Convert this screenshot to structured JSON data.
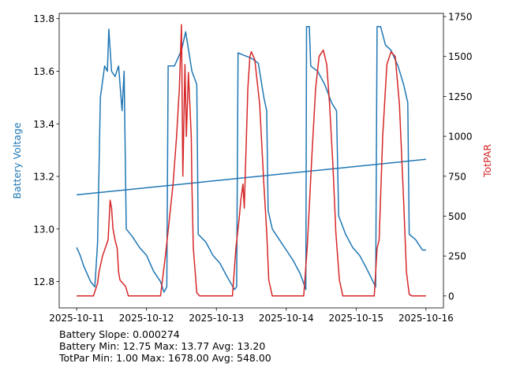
{
  "chart_data": {
    "type": "line",
    "left_axis": {
      "label": "Battery Voltage",
      "color": "#1f77b4",
      "ylim": [
        12.7,
        13.82
      ],
      "ticks": [
        12.8,
        13.0,
        13.2,
        13.4,
        13.6,
        13.8
      ],
      "tick_labels": [
        "12.8",
        "13.0",
        "13.2",
        "13.4",
        "13.6",
        "13.8"
      ]
    },
    "right_axis": {
      "label": "TotPAR",
      "color": "#d62728",
      "ylim": [
        -75,
        1770
      ],
      "ticks": [
        0,
        250,
        500,
        750,
        1000,
        1250,
        1500,
        1750
      ],
      "tick_labels": [
        "0",
        "250",
        "500",
        "750",
        "1000",
        "1250",
        "1500",
        "1750"
      ]
    },
    "x_axis": {
      "unit": "days since 2025-10-11",
      "xlim": [
        -0.25,
        5.25
      ],
      "ticks": [
        0,
        1,
        2,
        3,
        4,
        5
      ],
      "tick_labels": [
        "2025-10-11",
        "2025-10-12",
        "2025-10-13",
        "2025-10-14",
        "2025-10-15",
        "2025-10-16"
      ]
    },
    "series": [
      {
        "name": "Battery Voltage",
        "axis": "left",
        "color": "#1f77b4",
        "points": [
          [
            0,
            12.93
          ],
          [
            0.05,
            12.9
          ],
          [
            0.1,
            12.86
          ],
          [
            0.15,
            12.83
          ],
          [
            0.2,
            12.8
          ],
          [
            0.26,
            12.78
          ],
          [
            0.3,
            12.95
          ],
          [
            0.34,
            13.5
          ],
          [
            0.4,
            13.62
          ],
          [
            0.44,
            13.6
          ],
          [
            0.46,
            13.76
          ],
          [
            0.5,
            13.6
          ],
          [
            0.55,
            13.58
          ],
          [
            0.6,
            13.62
          ],
          [
            0.65,
            13.45
          ],
          [
            0.68,
            13.6
          ],
          [
            0.71,
            13.0
          ],
          [
            0.8,
            12.97
          ],
          [
            0.9,
            12.93
          ],
          [
            1.0,
            12.9
          ],
          [
            1.1,
            12.84
          ],
          [
            1.2,
            12.8
          ],
          [
            1.25,
            12.76
          ],
          [
            1.29,
            12.78
          ],
          [
            1.31,
            13.62
          ],
          [
            1.4,
            13.62
          ],
          [
            1.5,
            13.68
          ],
          [
            1.56,
            13.75
          ],
          [
            1.65,
            13.6
          ],
          [
            1.72,
            13.55
          ],
          [
            1.74,
            12.98
          ],
          [
            1.85,
            12.95
          ],
          [
            1.95,
            12.9
          ],
          [
            2.05,
            12.87
          ],
          [
            2.15,
            12.82
          ],
          [
            2.26,
            12.77
          ],
          [
            2.29,
            12.78
          ],
          [
            2.31,
            13.67
          ],
          [
            2.4,
            13.66
          ],
          [
            2.5,
            13.65
          ],
          [
            2.6,
            13.63
          ],
          [
            2.68,
            13.5
          ],
          [
            2.72,
            13.45
          ],
          [
            2.74,
            13.07
          ],
          [
            2.8,
            13.0
          ],
          [
            2.9,
            12.96
          ],
          [
            3.0,
            12.92
          ],
          [
            3.1,
            12.88
          ],
          [
            3.2,
            12.83
          ],
          [
            3.28,
            12.77
          ],
          [
            3.29,
            13.77
          ],
          [
            3.33,
            13.77
          ],
          [
            3.35,
            13.62
          ],
          [
            3.45,
            13.6
          ],
          [
            3.55,
            13.55
          ],
          [
            3.65,
            13.48
          ],
          [
            3.72,
            13.45
          ],
          [
            3.75,
            13.05
          ],
          [
            3.85,
            12.98
          ],
          [
            3.95,
            12.93
          ],
          [
            4.05,
            12.9
          ],
          [
            4.15,
            12.85
          ],
          [
            4.28,
            12.78
          ],
          [
            4.3,
            13.77
          ],
          [
            4.35,
            13.77
          ],
          [
            4.42,
            13.7
          ],
          [
            4.5,
            13.68
          ],
          [
            4.6,
            13.62
          ],
          [
            4.68,
            13.55
          ],
          [
            4.74,
            13.48
          ],
          [
            4.76,
            12.98
          ],
          [
            4.85,
            12.96
          ],
          [
            4.95,
            12.92
          ],
          [
            5.0,
            12.92
          ]
        ]
      },
      {
        "name": "Battery Trend",
        "axis": "left",
        "color": "#1f77b4",
        "points": [
          [
            0,
            13.13
          ],
          [
            5,
            13.265
          ]
        ]
      },
      {
        "name": "TotPAR",
        "axis": "right",
        "color": "#d62728",
        "points": [
          [
            0,
            0
          ],
          [
            0.24,
            0
          ],
          [
            0.3,
            80
          ],
          [
            0.32,
            150
          ],
          [
            0.37,
            250
          ],
          [
            0.41,
            300
          ],
          [
            0.45,
            350
          ],
          [
            0.48,
            600
          ],
          [
            0.5,
            550
          ],
          [
            0.52,
            420
          ],
          [
            0.55,
            350
          ],
          [
            0.58,
            300
          ],
          [
            0.6,
            150
          ],
          [
            0.62,
            100
          ],
          [
            0.66,
            80
          ],
          [
            0.7,
            60
          ],
          [
            0.74,
            0
          ],
          [
            1.2,
            0
          ],
          [
            1.27,
            250
          ],
          [
            1.32,
            450
          ],
          [
            1.38,
            700
          ],
          [
            1.43,
            1000
          ],
          [
            1.47,
            1300
          ],
          [
            1.5,
            1700
          ],
          [
            1.52,
            750
          ],
          [
            1.55,
            1450
          ],
          [
            1.57,
            1000
          ],
          [
            1.6,
            1400
          ],
          [
            1.64,
            1000
          ],
          [
            1.65,
            700
          ],
          [
            1.67,
            300
          ],
          [
            1.72,
            20
          ],
          [
            1.76,
            0
          ],
          [
            2.23,
            0
          ],
          [
            2.28,
            300
          ],
          [
            2.33,
            500
          ],
          [
            2.35,
            600
          ],
          [
            2.38,
            700
          ],
          [
            2.4,
            550
          ],
          [
            2.43,
            1000
          ],
          [
            2.45,
            1300
          ],
          [
            2.48,
            1500
          ],
          [
            2.5,
            1530
          ],
          [
            2.55,
            1480
          ],
          [
            2.62,
            1200
          ],
          [
            2.68,
            700
          ],
          [
            2.72,
            400
          ],
          [
            2.75,
            100
          ],
          [
            2.8,
            0
          ],
          [
            3.25,
            0
          ],
          [
            3.3,
            300
          ],
          [
            3.37,
            900
          ],
          [
            3.42,
            1300
          ],
          [
            3.47,
            1500
          ],
          [
            3.53,
            1540
          ],
          [
            3.58,
            1450
          ],
          [
            3.62,
            1200
          ],
          [
            3.67,
            800
          ],
          [
            3.71,
            400
          ],
          [
            3.76,
            100
          ],
          [
            3.81,
            0
          ],
          [
            4.26,
            0
          ],
          [
            4.3,
            300
          ],
          [
            4.33,
            350
          ],
          [
            4.38,
            1000
          ],
          [
            4.44,
            1450
          ],
          [
            4.5,
            1530
          ],
          [
            4.56,
            1500
          ],
          [
            4.62,
            1200
          ],
          [
            4.68,
            600
          ],
          [
            4.72,
            150
          ],
          [
            4.76,
            10
          ],
          [
            4.8,
            0
          ],
          [
            5.0,
            0
          ]
        ]
      }
    ],
    "annotations": [
      "Battery Slope: 0.000274",
      "Battery Min: 12.75 Max: 13.77 Avg: 13.20",
      "TotPar Min: 1.00 Max: 1678.00 Avg: 548.00"
    ]
  }
}
